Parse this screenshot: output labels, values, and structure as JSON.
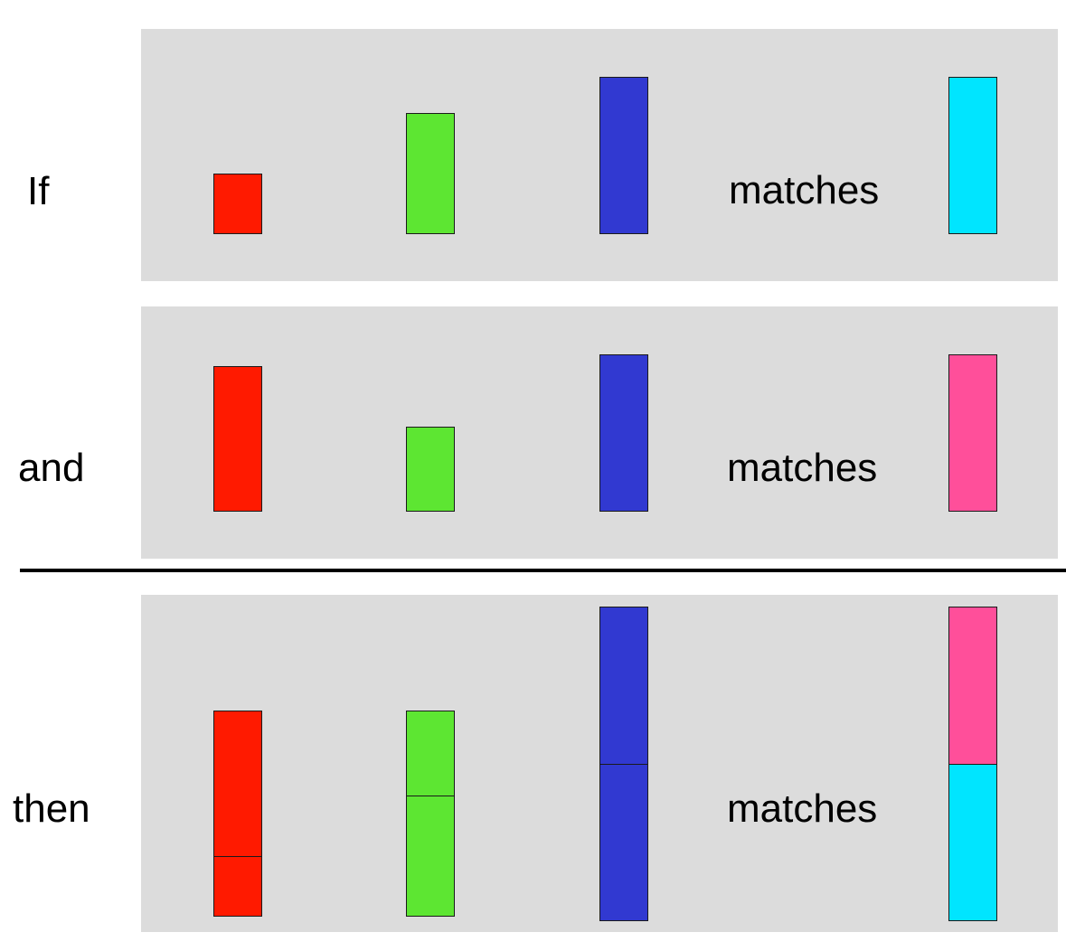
{
  "colors": {
    "red": "#ff1a00",
    "green": "#5de632",
    "blue": "#3139d1",
    "cyan": "#00e5ff",
    "pink": "#ff4f9a",
    "panel": "#dcdcdc"
  },
  "rows": [
    {
      "label": "If",
      "matches_label": "matches",
      "bars": [
        {
          "name": "red",
          "segments": [
            {
              "color": "red",
              "units": 1
            }
          ]
        },
        {
          "name": "green",
          "segments": [
            {
              "color": "green",
              "units": 2
            }
          ]
        },
        {
          "name": "blue",
          "segments": [
            {
              "color": "blue",
              "units": 2.6
            }
          ]
        },
        {
          "name": "cyan",
          "segments": [
            {
              "color": "cyan",
              "units": 2.6
            }
          ]
        }
      ]
    },
    {
      "label": "and",
      "matches_label": "matches",
      "bars": [
        {
          "name": "red",
          "segments": [
            {
              "color": "red",
              "units": 2.4
            }
          ]
        },
        {
          "name": "green",
          "segments": [
            {
              "color": "green",
              "units": 1.4
            }
          ]
        },
        {
          "name": "blue",
          "segments": [
            {
              "color": "blue",
              "units": 2.6
            }
          ]
        },
        {
          "name": "pink",
          "segments": [
            {
              "color": "pink",
              "units": 2.6
            }
          ]
        }
      ]
    },
    {
      "label": "then",
      "matches_label": "matches",
      "bars": [
        {
          "name": "red-combined",
          "segments": [
            {
              "color": "red",
              "units": 1
            },
            {
              "color": "red",
              "units": 2.4
            }
          ]
        },
        {
          "name": "green-combined",
          "segments": [
            {
              "color": "green",
              "units": 2
            },
            {
              "color": "green",
              "units": 1.4
            }
          ]
        },
        {
          "name": "blue-combined",
          "segments": [
            {
              "color": "blue",
              "units": 2.6
            },
            {
              "color": "blue",
              "units": 2.6
            }
          ]
        },
        {
          "name": "cyan-pink-combined",
          "segments": [
            {
              "color": "cyan",
              "units": 2.6
            },
            {
              "color": "pink",
              "units": 2.6
            }
          ]
        }
      ]
    }
  ]
}
